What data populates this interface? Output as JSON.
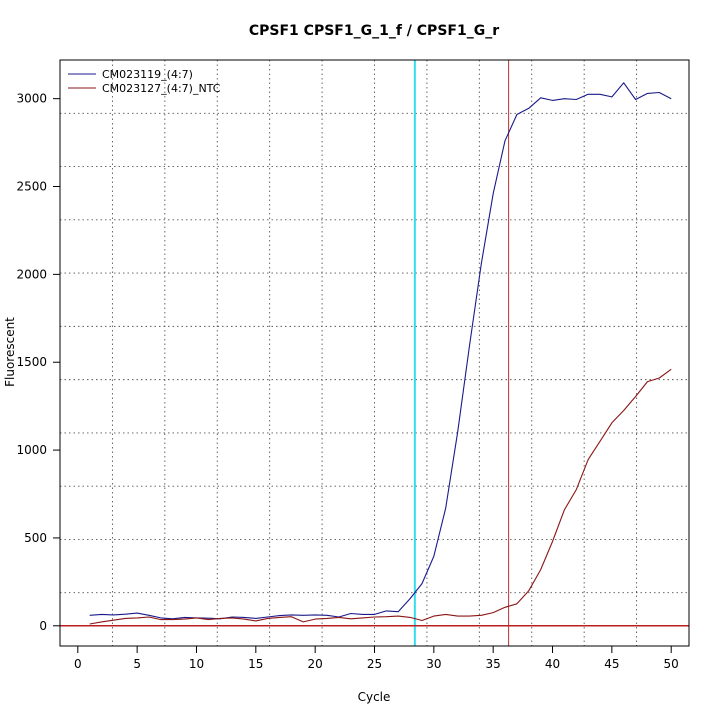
{
  "chart_data": {
    "type": "line",
    "title": "CPSF1  CPSF1_G_1_f / CPSF1_G_r",
    "xlabel": "Cycle",
    "ylabel": "Fluorescent",
    "xlim": [
      -1.5,
      51.5
    ],
    "ylim": [
      -115,
      3220
    ],
    "xticks": [
      0,
      5,
      10,
      15,
      20,
      25,
      30,
      35,
      40,
      45,
      50
    ],
    "yticks": [
      0,
      500,
      1000,
      1500,
      2000,
      2500,
      3000
    ],
    "grid": true,
    "legend_position": "top-left",
    "threshold": {
      "value": 0,
      "color": "#bb1e1e"
    },
    "vertical_markers": [
      {
        "x": 28.4,
        "color": "#33ddee"
      },
      {
        "x": 36.3,
        "color": "#bb3333"
      }
    ],
    "series": [
      {
        "name": "CM023119_(4:7)",
        "color": "#1a1a8c",
        "x": [
          1,
          2,
          3,
          4,
          5,
          6,
          7,
          8,
          9,
          10,
          11,
          12,
          13,
          14,
          15,
          16,
          17,
          18,
          19,
          20,
          21,
          22,
          23,
          24,
          25,
          26,
          27,
          28,
          29,
          30,
          31,
          32,
          33,
          34,
          35,
          36,
          37,
          38,
          39,
          40,
          41,
          42,
          43,
          44,
          45,
          46,
          47,
          48,
          49,
          50
        ],
        "y": [
          60,
          65,
          62,
          66,
          72,
          60,
          45,
          40,
          48,
          45,
          43,
          40,
          50,
          48,
          42,
          50,
          58,
          62,
          60,
          62,
          60,
          50,
          70,
          65,
          65,
          85,
          80,
          155,
          240,
          395,
          670,
          1100,
          1590,
          2060,
          2460,
          2760,
          2910,
          2945,
          3005,
          2990,
          3000,
          2995,
          3025,
          3025,
          3010,
          3090,
          2995,
          3030,
          3035,
          3000
        ]
      },
      {
        "name": "CM023127_(4:7)_NTC",
        "color": "#8b1515",
        "x": [
          1,
          2,
          3,
          4,
          5,
          6,
          7,
          8,
          9,
          10,
          11,
          12,
          13,
          14,
          15,
          16,
          17,
          18,
          19,
          20,
          21,
          22,
          23,
          24,
          25,
          26,
          27,
          28,
          29,
          30,
          31,
          32,
          33,
          34,
          35,
          36,
          37,
          38,
          39,
          40,
          41,
          42,
          43,
          44,
          45,
          46,
          47,
          48,
          49,
          50
        ],
        "y": [
          10,
          22,
          32,
          42,
          45,
          50,
          35,
          35,
          38,
          45,
          35,
          42,
          45,
          38,
          28,
          42,
          48,
          52,
          22,
          38,
          42,
          48,
          40,
          45,
          50,
          52,
          55,
          48,
          30,
          55,
          65,
          55,
          55,
          60,
          75,
          105,
          125,
          200,
          320,
          480,
          660,
          775,
          945,
          1050,
          1155,
          1225,
          1305,
          1390,
          1410,
          1460
        ]
      }
    ]
  }
}
